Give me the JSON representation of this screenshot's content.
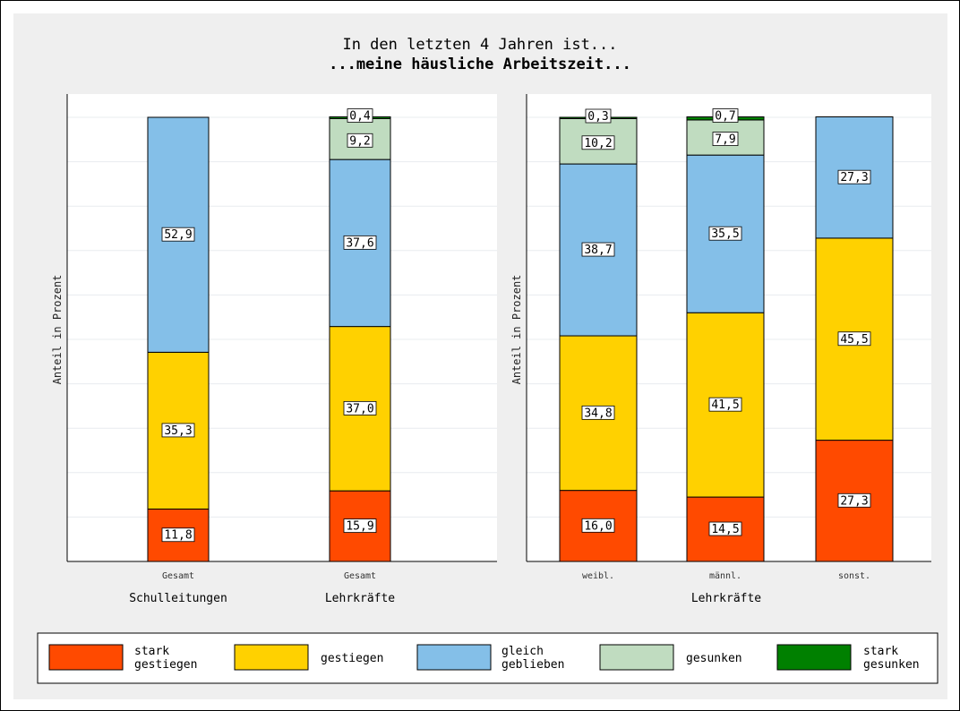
{
  "title": "In den letzten 4 Jahren ist...",
  "subtitle": "...meine häusliche Arbeitszeit...",
  "chart_data": [
    {
      "type": "bar",
      "stacked": true,
      "ylabel": "Anteil in Prozent",
      "ylim": [
        0,
        100
      ],
      "grid": true,
      "groups": [
        "Schulleitungen",
        "Lehrkräfte"
      ],
      "categories": [
        "Gesamt",
        "Gesamt"
      ],
      "category_group": [
        0,
        1
      ],
      "series": [
        {
          "name": "stark gestiegen",
          "values": [
            11.8,
            15.9
          ],
          "labels": [
            "11,8",
            "15,9"
          ]
        },
        {
          "name": "gestiegen",
          "values": [
            35.3,
            37.0
          ],
          "labels": [
            "35,3",
            "37,0"
          ]
        },
        {
          "name": "gleich geblieben",
          "values": [
            52.9,
            37.6
          ],
          "labels": [
            "52,9",
            "37,6"
          ]
        },
        {
          "name": "gesunken",
          "values": [
            0,
            9.2
          ],
          "labels": [
            "",
            "9,2"
          ]
        },
        {
          "name": "stark gesunken",
          "values": [
            0,
            0.4
          ],
          "labels": [
            "",
            "0,4"
          ]
        }
      ]
    },
    {
      "type": "bar",
      "stacked": true,
      "ylabel": "Anteil in Prozent",
      "ylim": [
        0,
        100
      ],
      "grid": true,
      "groups": [
        "Lehrkräfte"
      ],
      "categories": [
        "weibl.",
        "männl.",
        "sonst."
      ],
      "category_group": [
        0,
        0,
        0
      ],
      "series": [
        {
          "name": "stark gestiegen",
          "values": [
            16.0,
            14.5,
            27.3
          ],
          "labels": [
            "16,0",
            "14,5",
            "27,3"
          ]
        },
        {
          "name": "gestiegen",
          "values": [
            34.8,
            41.5,
            45.5
          ],
          "labels": [
            "34,8",
            "41,5",
            "45,5"
          ]
        },
        {
          "name": "gleich geblieben",
          "values": [
            38.7,
            35.5,
            27.3
          ],
          "labels": [
            "38,7",
            "35,5",
            "27,3"
          ]
        },
        {
          "name": "gesunken",
          "values": [
            10.2,
            7.9,
            0
          ],
          "labels": [
            "10,2",
            "7,9",
            ""
          ]
        },
        {
          "name": "stark gesunken",
          "values": [
            0.3,
            0.7,
            0
          ],
          "labels": [
            "0,3",
            "0,7",
            ""
          ]
        }
      ]
    }
  ],
  "legend": {
    "position": "bottom",
    "items": [
      {
        "line1": "stark",
        "line2": "gestiegen",
        "color": "#ff4a00"
      },
      {
        "line1": "gestiegen",
        "line2": "",
        "color": "#ffd100"
      },
      {
        "line1": "gleich",
        "line2": "geblieben",
        "color": "#84bfe8"
      },
      {
        "line1": "gesunken",
        "line2": "",
        "color": "#c0dcc0"
      },
      {
        "line1": "stark",
        "line2": "gesunken",
        "color": "#008000"
      }
    ]
  }
}
